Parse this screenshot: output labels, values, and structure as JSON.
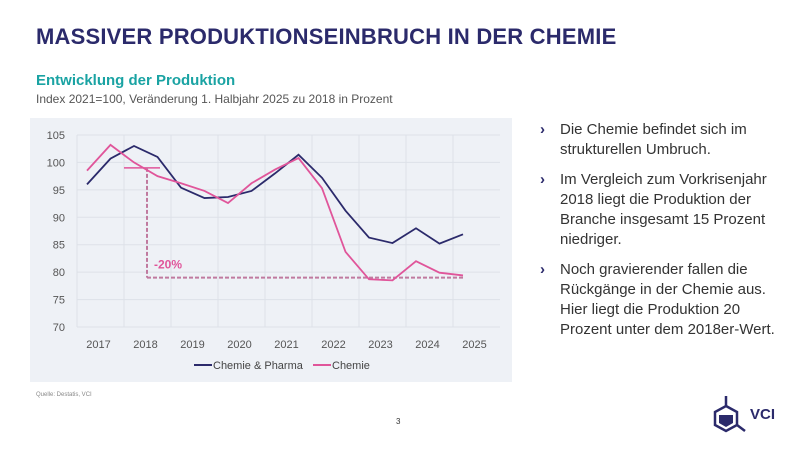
{
  "title": "MASSIVER PRODUKTIONSEINBRUCH IN DER CHEMIE",
  "subtitle": "Entwicklung der Produktion",
  "subline": "Index 2021=100, Veränderung 1. Halbjahr 2025 zu 2018 in Prozent",
  "bullets": [
    "Die Chemie befindet sich im strukturellen Umbruch.",
    "Im Vergleich zum Vorkrisenjahr 2018 liegt die Produktion der Branche insgesamt 15 Prozent niedriger.",
    "Noch gravierender fallen die Rückgänge in der Chemie aus. Hier liegt die Produktion 20 Prozent unter dem 2018er-Wert."
  ],
  "source": "Quelle: Destatis, VCI",
  "page_number": "3",
  "logo_text": "VCI",
  "colors": {
    "navy": "#2b2a6b",
    "pink": "#e0559a",
    "teal": "#1aa3a3"
  },
  "chart_data": {
    "type": "line",
    "x": [
      "2017 H1",
      "2017 H2",
      "2018 H1",
      "2018 H2",
      "2019 H1",
      "2019 H2",
      "2020 H1",
      "2020 H2",
      "2021 H1",
      "2021 H2",
      "2022 H1",
      "2022 H2",
      "2023 H1",
      "2023 H2",
      "2024 H1",
      "2024 H2",
      "2025 H1"
    ],
    "tick_labels": [
      "2017",
      "2018",
      "2019",
      "2020",
      "2021",
      "2022",
      "2023",
      "2024",
      "2025"
    ],
    "y_ticks": [
      "70",
      "75",
      "80",
      "85",
      "90",
      "95",
      "100",
      "105"
    ],
    "ylim": [
      70,
      105
    ],
    "grid": true,
    "legend_placement": "bottom",
    "series": [
      {
        "name": "Chemie & Pharma",
        "color": "#2b2a6b",
        "values": [
          96,
          100.7,
          103,
          101,
          95.4,
          93.5,
          93.7,
          94.8,
          98,
          101.4,
          97.2,
          91.2,
          86.3,
          85.3,
          88,
          85.2,
          86.9
        ]
      },
      {
        "name": "Chemie",
        "color": "#e0559a",
        "values": [
          98.5,
          103.2,
          100,
          97.5,
          96.2,
          94.8,
          92.6,
          96.2,
          98.7,
          100.8,
          95.3,
          83.7,
          78.7,
          78.5,
          82,
          79.9,
          79.4
        ]
      }
    ],
    "annotation": {
      "label": "-20%",
      "from_value": 99,
      "to_value": 79
    }
  }
}
